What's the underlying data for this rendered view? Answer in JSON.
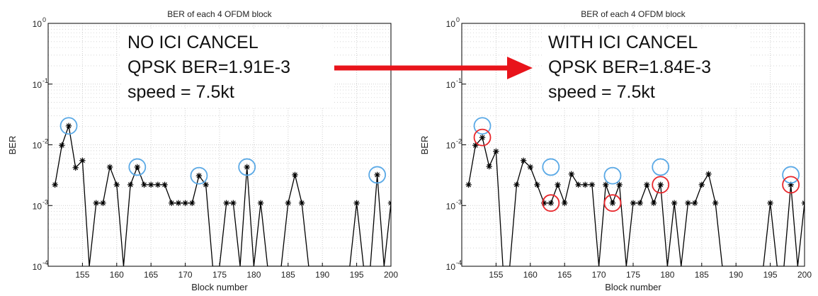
{
  "chart_data": [
    {
      "type": "line",
      "title": "BER of each 4  OFDM block",
      "xlabel": "Block number",
      "ylabel": "BER",
      "yscale": "log",
      "xlim": [
        150,
        200
      ],
      "ylim": [
        0.0001,
        1
      ],
      "grid": true,
      "x_ticks": [
        "155",
        "160",
        "165",
        "170",
        "175",
        "180",
        "185",
        "190",
        "195",
        "200"
      ],
      "y_ticks": [
        {
          "base": "10",
          "exp": "-4"
        },
        {
          "base": "10",
          "exp": "-3"
        },
        {
          "base": "10",
          "exp": "-2"
        },
        {
          "base": "10",
          "exp": "-1"
        },
        {
          "base": "10",
          "exp": "0"
        }
      ],
      "annotation": [
        "NO ICI CANCEL",
        "QPSK BER=1.91E-3",
        "speed = 7.5kt"
      ],
      "points": [
        [
          151,
          0.0022
        ],
        [
          152,
          0.0098
        ],
        [
          153,
          0.0205
        ],
        [
          154,
          0.0042
        ],
        [
          155,
          0.0055
        ],
        [
          156,
          0.0001
        ],
        [
          157,
          0.0011
        ],
        [
          158,
          0.0011
        ],
        [
          159,
          0.0043
        ],
        [
          160,
          0.0022
        ],
        [
          161,
          0.0001
        ],
        [
          162,
          0.0022
        ],
        [
          163,
          0.0043
        ],
        [
          164,
          0.0022
        ],
        [
          165,
          0.0022
        ],
        [
          166,
          0.0022
        ],
        [
          167,
          0.0022
        ],
        [
          168,
          0.0011
        ],
        [
          169,
          0.0011
        ],
        [
          170,
          0.0011
        ],
        [
          171,
          0.0011
        ],
        [
          172,
          0.0031
        ],
        [
          173,
          0.0022
        ],
        [
          174,
          0.0001
        ],
        [
          175,
          0.0001
        ],
        [
          176,
          0.0011
        ],
        [
          177,
          0.0011
        ],
        [
          178,
          0.0001
        ],
        [
          179,
          0.0043
        ],
        [
          180,
          0.0001
        ],
        [
          181,
          0.0011
        ],
        [
          182,
          0.0001
        ],
        [
          183,
          0.0001
        ],
        [
          184,
          0.0001
        ],
        [
          185,
          0.0011
        ],
        [
          186,
          0.0032
        ],
        [
          187,
          0.0011
        ],
        [
          188,
          0.0001
        ],
        [
          189,
          0.0001
        ],
        [
          190,
          0.0001
        ],
        [
          191,
          0.0001
        ],
        [
          192,
          0.0001
        ],
        [
          193,
          0.0001
        ],
        [
          194,
          0.0001
        ],
        [
          195,
          0.0011
        ],
        [
          196,
          0.0001
        ],
        [
          197,
          0.0001
        ],
        [
          198,
          0.0032
        ],
        [
          199,
          0.0001
        ],
        [
          200,
          0.0011
        ]
      ],
      "highlight_blue": [
        153,
        163,
        172,
        179,
        198
      ],
      "highlight_red": []
    },
    {
      "type": "line",
      "title": "BER of each 4  OFDM block",
      "xlabel": "Block number",
      "ylabel": "BER",
      "yscale": "log",
      "xlim": [
        150,
        200
      ],
      "ylim": [
        0.0001,
        1
      ],
      "grid": true,
      "x_ticks": [
        "155",
        "160",
        "165",
        "170",
        "175",
        "180",
        "185",
        "190",
        "195",
        "200"
      ],
      "y_ticks": [
        {
          "base": "10",
          "exp": "-4"
        },
        {
          "base": "10",
          "exp": "-3"
        },
        {
          "base": "10",
          "exp": "-2"
        },
        {
          "base": "10",
          "exp": "-1"
        },
        {
          "base": "10",
          "exp": "0"
        }
      ],
      "annotation": [
        "WITH ICI CANCEL",
        "QPSK BER=1.84E-3",
        "speed = 7.5kt"
      ],
      "points": [
        [
          151,
          0.0022
        ],
        [
          152,
          0.0098
        ],
        [
          153,
          0.0132
        ],
        [
          154,
          0.0044
        ],
        [
          155,
          0.0078
        ],
        [
          156,
          0.0001
        ],
        [
          157,
          0.0001
        ],
        [
          158,
          0.0022
        ],
        [
          159,
          0.0055
        ],
        [
          160,
          0.0043
        ],
        [
          161,
          0.0022
        ],
        [
          162,
          0.0011
        ],
        [
          163,
          0.0011
        ],
        [
          164,
          0.0022
        ],
        [
          165,
          0.0011
        ],
        [
          166,
          0.0033
        ],
        [
          167,
          0.0022
        ],
        [
          168,
          0.0022
        ],
        [
          169,
          0.0022
        ],
        [
          170,
          0.0001
        ],
        [
          171,
          0.0022
        ],
        [
          172,
          0.0011
        ],
        [
          173,
          0.0022
        ],
        [
          174,
          0.0001
        ],
        [
          175,
          0.0011
        ],
        [
          176,
          0.0011
        ],
        [
          177,
          0.0022
        ],
        [
          178,
          0.0011
        ],
        [
          179,
          0.0022
        ],
        [
          180,
          0.0001
        ],
        [
          181,
          0.0011
        ],
        [
          182,
          0.0001
        ],
        [
          183,
          0.0011
        ],
        [
          184,
          0.0011
        ],
        [
          185,
          0.0022
        ],
        [
          186,
          0.0033
        ],
        [
          187,
          0.0011
        ],
        [
          188,
          0.0001
        ],
        [
          189,
          0.0001
        ],
        [
          190,
          0.0001
        ],
        [
          191,
          0.0001
        ],
        [
          192,
          0.0001
        ],
        [
          193,
          0.0001
        ],
        [
          194,
          0.0001
        ],
        [
          195,
          0.0011
        ],
        [
          196,
          0.0001
        ],
        [
          197,
          0.0001
        ],
        [
          198,
          0.0022
        ],
        [
          199,
          0.0001
        ],
        [
          200,
          0.0011
        ]
      ],
      "highlight_blue": [
        153,
        163,
        172,
        179,
        198
      ],
      "highlight_red": [
        153,
        163,
        172,
        179,
        198
      ]
    }
  ],
  "colors": {
    "line": "#000000",
    "grid": "#cfcfcf",
    "blue_circle": "#5aa9e6",
    "red_circle": "#e8262b",
    "arrow": "#e8141b",
    "annotation_bg": "#ffffff"
  }
}
